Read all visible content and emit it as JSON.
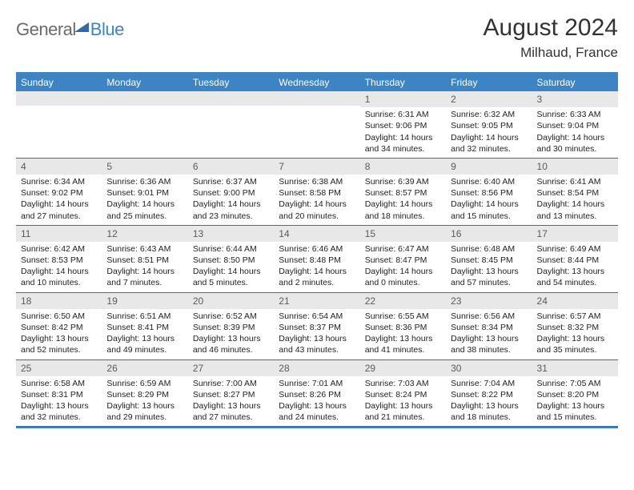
{
  "brand": {
    "part1": "General",
    "part2": "Blue",
    "mark_color": "#2f6aa8"
  },
  "title": "August 2024",
  "location": "Milhaud, France",
  "colors": {
    "header_bar": "#3d84c4",
    "gridline": "#3d6d9e",
    "daynum_bg": "#e8e8e8"
  },
  "day_names": [
    "Sunday",
    "Monday",
    "Tuesday",
    "Wednesday",
    "Thursday",
    "Friday",
    "Saturday"
  ],
  "weeks": [
    [
      {
        "n": "",
        "sunrise": "",
        "sunset": "",
        "day": ""
      },
      {
        "n": "",
        "sunrise": "",
        "sunset": "",
        "day": ""
      },
      {
        "n": "",
        "sunrise": "",
        "sunset": "",
        "day": ""
      },
      {
        "n": "",
        "sunrise": "",
        "sunset": "",
        "day": ""
      },
      {
        "n": "1",
        "sunrise": "Sunrise: 6:31 AM",
        "sunset": "Sunset: 9:06 PM",
        "day": "Daylight: 14 hours and 34 minutes."
      },
      {
        "n": "2",
        "sunrise": "Sunrise: 6:32 AM",
        "sunset": "Sunset: 9:05 PM",
        "day": "Daylight: 14 hours and 32 minutes."
      },
      {
        "n": "3",
        "sunrise": "Sunrise: 6:33 AM",
        "sunset": "Sunset: 9:04 PM",
        "day": "Daylight: 14 hours and 30 minutes."
      }
    ],
    [
      {
        "n": "4",
        "sunrise": "Sunrise: 6:34 AM",
        "sunset": "Sunset: 9:02 PM",
        "day": "Daylight: 14 hours and 27 minutes."
      },
      {
        "n": "5",
        "sunrise": "Sunrise: 6:36 AM",
        "sunset": "Sunset: 9:01 PM",
        "day": "Daylight: 14 hours and 25 minutes."
      },
      {
        "n": "6",
        "sunrise": "Sunrise: 6:37 AM",
        "sunset": "Sunset: 9:00 PM",
        "day": "Daylight: 14 hours and 23 minutes."
      },
      {
        "n": "7",
        "sunrise": "Sunrise: 6:38 AM",
        "sunset": "Sunset: 8:58 PM",
        "day": "Daylight: 14 hours and 20 minutes."
      },
      {
        "n": "8",
        "sunrise": "Sunrise: 6:39 AM",
        "sunset": "Sunset: 8:57 PM",
        "day": "Daylight: 14 hours and 18 minutes."
      },
      {
        "n": "9",
        "sunrise": "Sunrise: 6:40 AM",
        "sunset": "Sunset: 8:56 PM",
        "day": "Daylight: 14 hours and 15 minutes."
      },
      {
        "n": "10",
        "sunrise": "Sunrise: 6:41 AM",
        "sunset": "Sunset: 8:54 PM",
        "day": "Daylight: 14 hours and 13 minutes."
      }
    ],
    [
      {
        "n": "11",
        "sunrise": "Sunrise: 6:42 AM",
        "sunset": "Sunset: 8:53 PM",
        "day": "Daylight: 14 hours and 10 minutes."
      },
      {
        "n": "12",
        "sunrise": "Sunrise: 6:43 AM",
        "sunset": "Sunset: 8:51 PM",
        "day": "Daylight: 14 hours and 7 minutes."
      },
      {
        "n": "13",
        "sunrise": "Sunrise: 6:44 AM",
        "sunset": "Sunset: 8:50 PM",
        "day": "Daylight: 14 hours and 5 minutes."
      },
      {
        "n": "14",
        "sunrise": "Sunrise: 6:46 AM",
        "sunset": "Sunset: 8:48 PM",
        "day": "Daylight: 14 hours and 2 minutes."
      },
      {
        "n": "15",
        "sunrise": "Sunrise: 6:47 AM",
        "sunset": "Sunset: 8:47 PM",
        "day": "Daylight: 14 hours and 0 minutes."
      },
      {
        "n": "16",
        "sunrise": "Sunrise: 6:48 AM",
        "sunset": "Sunset: 8:45 PM",
        "day": "Daylight: 13 hours and 57 minutes."
      },
      {
        "n": "17",
        "sunrise": "Sunrise: 6:49 AM",
        "sunset": "Sunset: 8:44 PM",
        "day": "Daylight: 13 hours and 54 minutes."
      }
    ],
    [
      {
        "n": "18",
        "sunrise": "Sunrise: 6:50 AM",
        "sunset": "Sunset: 8:42 PM",
        "day": "Daylight: 13 hours and 52 minutes."
      },
      {
        "n": "19",
        "sunrise": "Sunrise: 6:51 AM",
        "sunset": "Sunset: 8:41 PM",
        "day": "Daylight: 13 hours and 49 minutes."
      },
      {
        "n": "20",
        "sunrise": "Sunrise: 6:52 AM",
        "sunset": "Sunset: 8:39 PM",
        "day": "Daylight: 13 hours and 46 minutes."
      },
      {
        "n": "21",
        "sunrise": "Sunrise: 6:54 AM",
        "sunset": "Sunset: 8:37 PM",
        "day": "Daylight: 13 hours and 43 minutes."
      },
      {
        "n": "22",
        "sunrise": "Sunrise: 6:55 AM",
        "sunset": "Sunset: 8:36 PM",
        "day": "Daylight: 13 hours and 41 minutes."
      },
      {
        "n": "23",
        "sunrise": "Sunrise: 6:56 AM",
        "sunset": "Sunset: 8:34 PM",
        "day": "Daylight: 13 hours and 38 minutes."
      },
      {
        "n": "24",
        "sunrise": "Sunrise: 6:57 AM",
        "sunset": "Sunset: 8:32 PM",
        "day": "Daylight: 13 hours and 35 minutes."
      }
    ],
    [
      {
        "n": "25",
        "sunrise": "Sunrise: 6:58 AM",
        "sunset": "Sunset: 8:31 PM",
        "day": "Daylight: 13 hours and 32 minutes."
      },
      {
        "n": "26",
        "sunrise": "Sunrise: 6:59 AM",
        "sunset": "Sunset: 8:29 PM",
        "day": "Daylight: 13 hours and 29 minutes."
      },
      {
        "n": "27",
        "sunrise": "Sunrise: 7:00 AM",
        "sunset": "Sunset: 8:27 PM",
        "day": "Daylight: 13 hours and 27 minutes."
      },
      {
        "n": "28",
        "sunrise": "Sunrise: 7:01 AM",
        "sunset": "Sunset: 8:26 PM",
        "day": "Daylight: 13 hours and 24 minutes."
      },
      {
        "n": "29",
        "sunrise": "Sunrise: 7:03 AM",
        "sunset": "Sunset: 8:24 PM",
        "day": "Daylight: 13 hours and 21 minutes."
      },
      {
        "n": "30",
        "sunrise": "Sunrise: 7:04 AM",
        "sunset": "Sunset: 8:22 PM",
        "day": "Daylight: 13 hours and 18 minutes."
      },
      {
        "n": "31",
        "sunrise": "Sunrise: 7:05 AM",
        "sunset": "Sunset: 8:20 PM",
        "day": "Daylight: 13 hours and 15 minutes."
      }
    ]
  ]
}
